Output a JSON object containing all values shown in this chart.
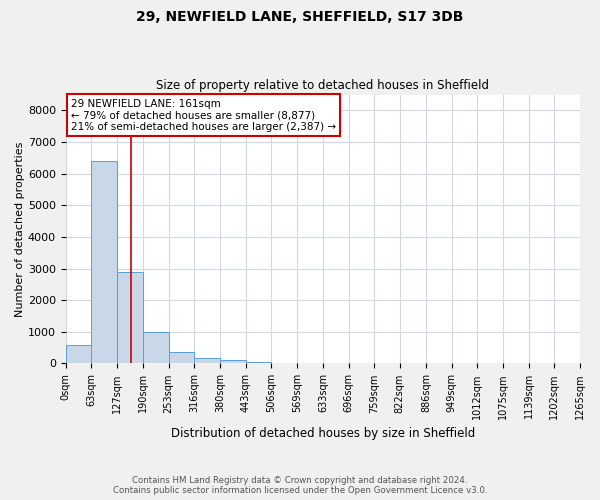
{
  "title1": "29, NEWFIELD LANE, SHEFFIELD, S17 3DB",
  "title2": "Size of property relative to detached houses in Sheffield",
  "xlabel": "Distribution of detached houses by size in Sheffield",
  "ylabel": "Number of detached properties",
  "footnote1": "Contains HM Land Registry data © Crown copyright and database right 2024.",
  "footnote2": "Contains public sector information licensed under the Open Government Licence v3.0.",
  "bin_edges": [
    0,
    63,
    127,
    190,
    253,
    316,
    380,
    443,
    506,
    569,
    633,
    696,
    759,
    822,
    886,
    949,
    1012,
    1075,
    1139,
    1202,
    1265
  ],
  "bar_heights": [
    570,
    6400,
    2900,
    980,
    370,
    170,
    105,
    60,
    10,
    5,
    2,
    1,
    1,
    0,
    0,
    0,
    0,
    0,
    0,
    0
  ],
  "bar_color": "#c8d8e8",
  "bar_edgecolor": "#5a9fd4",
  "grid_color": "#d0d8e0",
  "vline_x": 161,
  "vline_color": "#cc0000",
  "ylim": [
    0,
    8500
  ],
  "yticks": [
    0,
    1000,
    2000,
    3000,
    4000,
    5000,
    6000,
    7000,
    8000
  ],
  "annotation_line1": "29 NEWFIELD LANE: 161sqm",
  "annotation_line2": "← 79% of detached houses are smaller (8,877)",
  "annotation_line3": "21% of semi-detached houses are larger (2,387) →",
  "annotation_box_color": "#ffffff",
  "annotation_box_edgecolor": "#cc0000",
  "bg_color": "#f0f0f0"
}
